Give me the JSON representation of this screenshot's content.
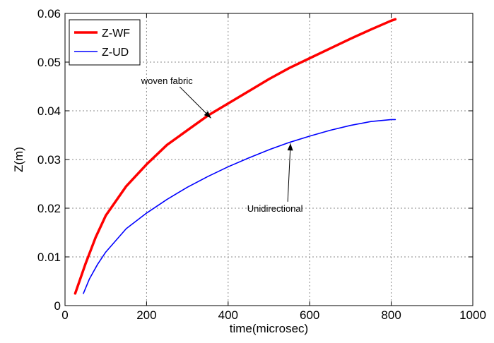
{
  "chart_data": {
    "type": "line",
    "title": "",
    "xlabel": "time(microsec)",
    "ylabel": "Z(m)",
    "xlim": [
      0,
      1000
    ],
    "ylim": [
      0,
      0.06
    ],
    "x_ticks": [
      0,
      200,
      400,
      600,
      800,
      1000
    ],
    "y_ticks": [
      0,
      0.01,
      0.02,
      0.03,
      0.04,
      0.05,
      0.06
    ],
    "x_tick_labels": [
      "0",
      "200",
      "400",
      "600",
      "800",
      "1000"
    ],
    "y_tick_labels": [
      "0",
      "0.01",
      "0.02",
      "0.03",
      "0.04",
      "0.05",
      "0.06"
    ],
    "grid": true,
    "legend_position": "top-left",
    "series": [
      {
        "name": "Z-WF",
        "color": "#ff0000",
        "x": [
          25,
          50,
          75,
          100,
          150,
          200,
          250,
          300,
          350,
          400,
          450,
          500,
          550,
          600,
          650,
          700,
          750,
          800,
          810
        ],
        "y": [
          0.0025,
          0.0085,
          0.014,
          0.0185,
          0.0245,
          0.029,
          0.033,
          0.036,
          0.039,
          0.0415,
          0.044,
          0.0465,
          0.0488,
          0.0508,
          0.0528,
          0.0548,
          0.0567,
          0.0585,
          0.0588
        ]
      },
      {
        "name": "Z-UD",
        "color": "#0000ff",
        "x": [
          45,
          60,
          80,
          100,
          150,
          200,
          250,
          300,
          350,
          400,
          450,
          500,
          550,
          600,
          650,
          700,
          750,
          800,
          810
        ],
        "y": [
          0.0025,
          0.0055,
          0.0085,
          0.011,
          0.0158,
          0.019,
          0.0218,
          0.0243,
          0.0265,
          0.0285,
          0.0303,
          0.032,
          0.0335,
          0.0348,
          0.036,
          0.037,
          0.0378,
          0.0382,
          0.0382
        ]
      }
    ],
    "annotations": [
      {
        "text": "woven fabric",
        "text_at": [
          250,
          0.0455
        ],
        "arrow_to": [
          358,
          0.0385
        ]
      },
      {
        "text": "Unidirectional",
        "text_at": [
          515,
          0.0193
        ],
        "arrow_to": [
          553,
          0.0333
        ]
      }
    ]
  }
}
